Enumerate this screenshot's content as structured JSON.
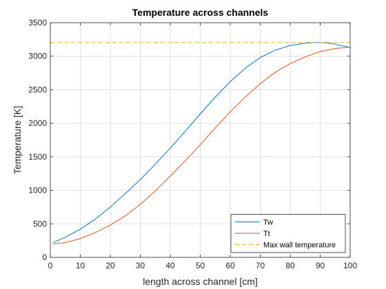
{
  "chart_data": {
    "type": "line",
    "title": "Temperature across channels",
    "xlabel": "length across channel [cm]",
    "ylabel": "Temperature [K]",
    "xlim": [
      0,
      100
    ],
    "ylim": [
      0,
      3500
    ],
    "xticks": [
      0,
      10,
      20,
      30,
      40,
      50,
      60,
      70,
      80,
      90,
      100
    ],
    "yticks": [
      0,
      500,
      1000,
      1500,
      2000,
      2500,
      3000,
      3500
    ],
    "grid": true,
    "legend_position": "bottom-right",
    "series": [
      {
        "name": "Tw",
        "color": "#0072BD",
        "style": "solid",
        "x": [
          1,
          5,
          10,
          15,
          20,
          25,
          30,
          35,
          40,
          45,
          50,
          55,
          60,
          65,
          70,
          75,
          80,
          85,
          88,
          90,
          92,
          95,
          100
        ],
        "y": [
          220,
          300,
          420,
          570,
          750,
          950,
          1160,
          1390,
          1630,
          1880,
          2140,
          2390,
          2620,
          2820,
          2980,
          3090,
          3160,
          3195,
          3205,
          3205,
          3200,
          3180,
          3130
        ]
      },
      {
        "name": "Tt",
        "color": "#D95319",
        "style": "solid",
        "x": [
          1,
          5,
          10,
          15,
          20,
          25,
          30,
          35,
          40,
          45,
          50,
          55,
          60,
          65,
          70,
          75,
          80,
          85,
          90,
          95,
          100
        ],
        "y": [
          200,
          220,
          280,
          370,
          480,
          620,
          790,
          990,
          1210,
          1440,
          1680,
          1930,
          2170,
          2390,
          2590,
          2760,
          2890,
          2990,
          3070,
          3115,
          3135
        ]
      },
      {
        "name": "Max wall temperature",
        "color": "#EDB120",
        "style": "dashed",
        "x": [
          0,
          100
        ],
        "y": [
          3205,
          3205
        ]
      }
    ]
  }
}
